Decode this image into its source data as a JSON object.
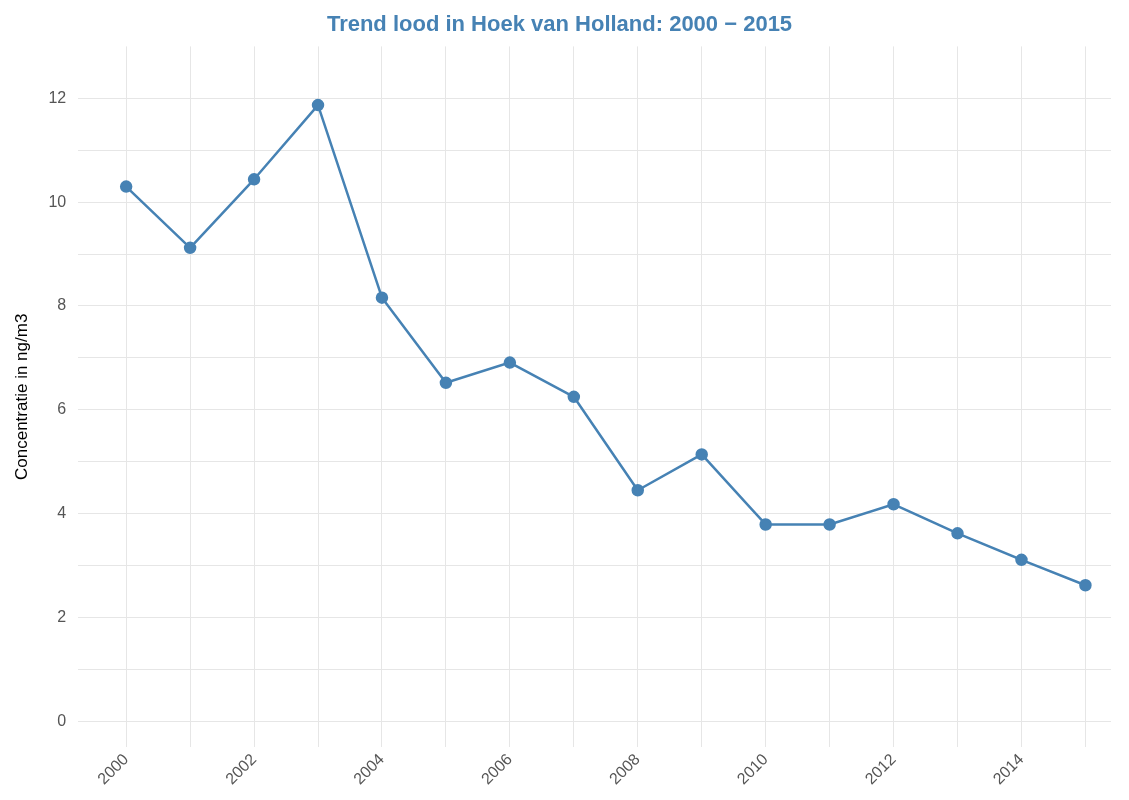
{
  "chart_data": {
    "type": "line",
    "title": "Trend lood in Hoek van Holland: 2000 − 2015",
    "ylabel": "Concentratie in ng/m3",
    "x": [
      2000,
      2001,
      2002,
      2003,
      2004,
      2005,
      2006,
      2007,
      2008,
      2009,
      2010,
      2011,
      2012,
      2013,
      2014,
      2015
    ],
    "series": [
      {
        "color": "#4682b4",
        "values": [
          10.3,
          9.12,
          10.44,
          11.87,
          8.16,
          6.52,
          6.91,
          6.25,
          4.45,
          5.14,
          3.79,
          3.79,
          4.18,
          3.62,
          3.11,
          2.62
        ]
      }
    ],
    "xlim": [
      1999.25,
      2015.4
    ],
    "ylim": [
      -0.5,
      13
    ],
    "xticks": [
      2000,
      {
        "value": 2001,
        "label": null
      },
      2002,
      {
        "value": 2003,
        "label": null
      },
      2004,
      {
        "value": 2005,
        "label": null
      },
      2006,
      {
        "value": 2007,
        "label": null
      },
      2008,
      {
        "value": 2009,
        "label": null
      },
      2010,
      {
        "value": 2011,
        "label": null
      },
      2012,
      {
        "value": 2013,
        "label": null
      },
      2014,
      {
        "value": 2015,
        "label": null
      }
    ],
    "yticks": [
      0,
      {
        "value": 1,
        "label": null
      },
      2,
      {
        "value": 3,
        "label": null
      },
      4,
      {
        "value": 5,
        "label": null
      },
      6,
      {
        "value": 7,
        "label": null
      },
      8,
      {
        "value": 9,
        "label": null
      },
      10,
      {
        "value": 11,
        "label": null
      },
      12
    ],
    "grid": true,
    "marker": "circle",
    "line_style": "solid",
    "legend": false
  }
}
